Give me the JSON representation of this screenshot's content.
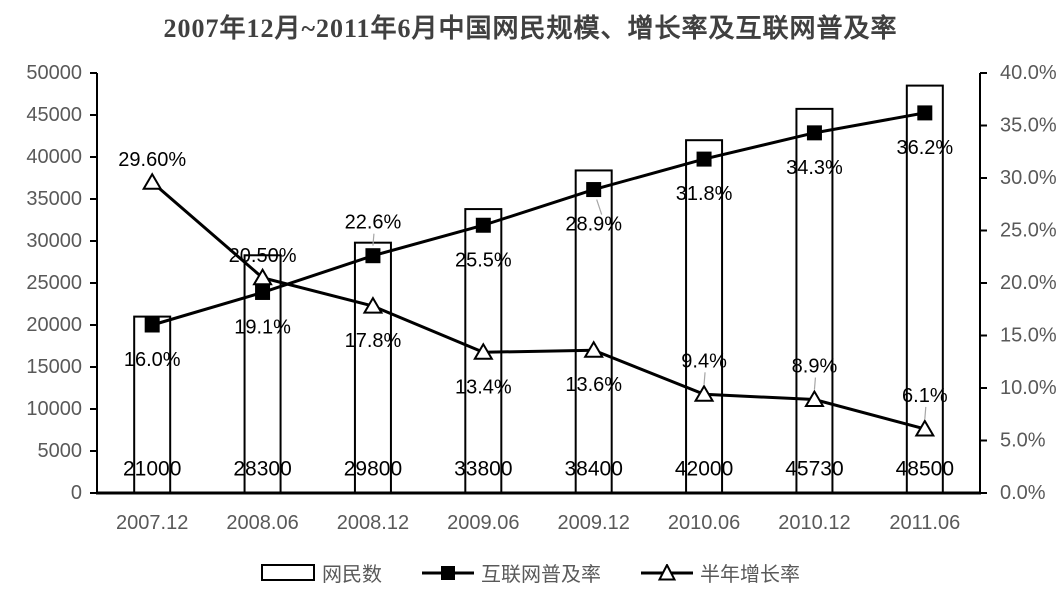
{
  "chart_data": {
    "type": "combo-bar-line",
    "title": "2007年12月~2011年6月中国网民规模、增长率及互联网普及率",
    "categories": [
      "2007.12",
      "2008.06",
      "2008.12",
      "2009.06",
      "2009.12",
      "2010.06",
      "2010.12",
      "2011.06"
    ],
    "series": [
      {
        "name": "网民数",
        "chart_type": "bar",
        "axis": "left",
        "values": [
          21000,
          28300,
          29800,
          33800,
          38400,
          42000,
          45730,
          48500
        ],
        "data_labels": [
          "21000",
          "28300",
          "29800",
          "33800",
          "38400",
          "42000",
          "45730",
          "48500"
        ]
      },
      {
        "name": "互联网普及率",
        "chart_type": "line",
        "marker": "filled-square",
        "axis": "right",
        "values": [
          16.0,
          19.1,
          22.6,
          25.5,
          28.9,
          31.8,
          34.3,
          36.2
        ],
        "data_labels": [
          "16.0%",
          "19.1%",
          "22.6%",
          "25.5%",
          "28.9%",
          "31.8%",
          "34.3%",
          "36.2%"
        ],
        "label_placement": [
          "below",
          "below",
          "above",
          "below",
          "below",
          "below",
          "below",
          "below"
        ],
        "leader_lines": [
          false,
          false,
          true,
          false,
          true,
          false,
          false,
          false
        ]
      },
      {
        "name": "半年增长率",
        "chart_type": "line",
        "marker": "open-triangle",
        "axis": "right",
        "values": [
          29.6,
          20.5,
          17.8,
          13.4,
          13.6,
          9.4,
          8.9,
          6.1
        ],
        "data_labels": [
          "29.60%",
          "20.50%",
          "17.8%",
          "13.4%",
          "13.6%",
          "9.4%",
          "8.9%",
          "6.1%"
        ],
        "label_placement": [
          "above",
          "above",
          "below",
          "below",
          "below",
          "above",
          "above",
          "above"
        ],
        "leader_lines": [
          false,
          false,
          false,
          false,
          false,
          true,
          true,
          true
        ]
      }
    ],
    "left_axis": {
      "min": 0,
      "max": 50000,
      "step": 5000,
      "tick_labels": [
        "0",
        "5000",
        "10000",
        "15000",
        "20000",
        "25000",
        "30000",
        "35000",
        "40000",
        "45000",
        "50000"
      ]
    },
    "right_axis": {
      "min": 0,
      "max": 40,
      "step": 5,
      "tick_labels": [
        "0.0%",
        "5.0%",
        "10.0%",
        "15.0%",
        "20.0%",
        "25.0%",
        "30.0%",
        "35.0%",
        "40.0%"
      ]
    },
    "grid": false,
    "legend": {
      "position": "bottom"
    },
    "colors": {
      "background": "#ffffff",
      "axis_line": "#000000",
      "series_color": "#000000",
      "bar_fill": "#ffffff",
      "axis_text": "#595959",
      "data_label_text": "#000000",
      "title_text": "#404040",
      "leader_line": "#a6a6a6"
    }
  }
}
